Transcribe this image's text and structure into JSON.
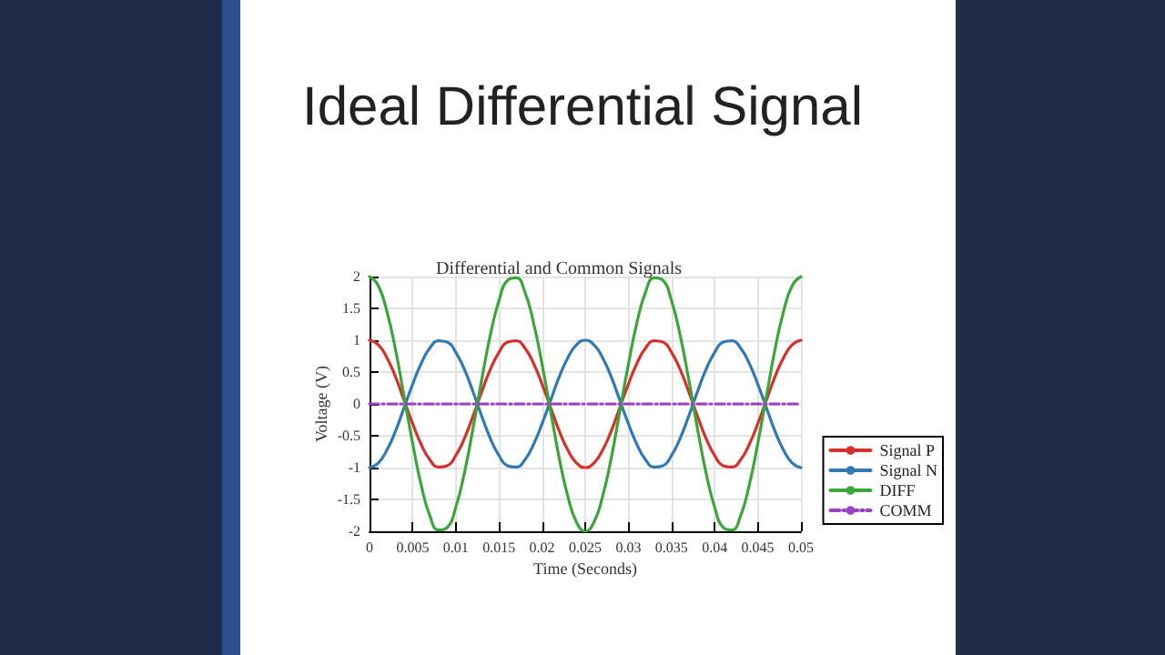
{
  "chart_data": {
    "type": "line",
    "title": "Ideal Differential Signal",
    "subtitle": "Differential and Common Signals",
    "xlabel": "Time (Seconds)",
    "ylabel": "Voltage (V)",
    "x": [
      0,
      0.001,
      0.002,
      0.003,
      0.004,
      0.005,
      0.006,
      0.007,
      0.008,
      0.009,
      0.01,
      0.011,
      0.012,
      0.013,
      0.014,
      0.015,
      0.016,
      0.017,
      0.018,
      0.019,
      0.02,
      0.021,
      0.022,
      0.023,
      0.024,
      0.025,
      0.026,
      0.027,
      0.028,
      0.029,
      0.03,
      0.031,
      0.032,
      0.033,
      0.034,
      0.035,
      0.036,
      0.037,
      0.038,
      0.039,
      0.04,
      0.041,
      0.042,
      0.043,
      0.044,
      0.045,
      0.046,
      0.047,
      0.048,
      0.049,
      0.05
    ],
    "series": [
      {
        "name": "Signal P",
        "color": "#d7302b",
        "values": [
          1,
          0.93,
          0.73,
          0.43,
          0.06,
          -0.31,
          -0.64,
          -0.88,
          -0.99,
          -0.97,
          -0.81,
          -0.54,
          -0.19,
          0.19,
          0.54,
          0.81,
          0.97,
          0.99,
          0.88,
          0.64,
          0.31,
          -0.06,
          -0.43,
          -0.73,
          -0.93,
          -1,
          -0.93,
          -0.73,
          -0.43,
          -0.06,
          0.31,
          0.64,
          0.88,
          0.99,
          0.97,
          0.81,
          0.54,
          0.19,
          -0.19,
          -0.54,
          -0.81,
          -0.97,
          -0.99,
          -0.88,
          -0.64,
          -0.31,
          0.06,
          0.43,
          0.73,
          0.93,
          1
        ]
      },
      {
        "name": "Signal N",
        "color": "#2f7ab5",
        "values": [
          -1,
          -0.93,
          -0.73,
          -0.43,
          -0.06,
          0.31,
          0.64,
          0.88,
          0.99,
          0.97,
          0.81,
          0.54,
          0.19,
          -0.19,
          -0.54,
          -0.81,
          -0.97,
          -0.99,
          -0.88,
          -0.64,
          -0.31,
          0.06,
          0.43,
          0.73,
          0.93,
          1,
          0.93,
          0.73,
          0.43,
          0.06,
          -0.31,
          -0.64,
          -0.88,
          -0.99,
          -0.97,
          -0.81,
          -0.54,
          -0.19,
          0.19,
          0.54,
          0.81,
          0.97,
          0.99,
          0.88,
          0.64,
          0.31,
          -0.06,
          -0.43,
          -0.73,
          -0.93,
          -1
        ]
      },
      {
        "name": "DIFF",
        "color": "#3aa63a",
        "values": [
          2,
          1.86,
          1.46,
          0.86,
          0.12,
          -0.62,
          -1.28,
          -1.76,
          -1.98,
          -1.94,
          -1.62,
          -1.08,
          -0.38,
          0.38,
          1.08,
          1.62,
          1.94,
          1.98,
          1.76,
          1.28,
          0.62,
          -0.12,
          -0.86,
          -1.46,
          -1.86,
          -2,
          -1.86,
          -1.46,
          -0.86,
          -0.12,
          0.62,
          1.28,
          1.76,
          1.98,
          1.94,
          1.62,
          1.08,
          0.38,
          -0.38,
          -1.08,
          -1.62,
          -1.94,
          -1.98,
          -1.76,
          -1.28,
          -0.62,
          0.12,
          0.86,
          1.46,
          1.86,
          2
        ]
      },
      {
        "name": "COMM",
        "color": "#9b40c4",
        "line_style": "dashed",
        "values": [
          0,
          0,
          0,
          0,
          0,
          0,
          0,
          0,
          0,
          0,
          0,
          0,
          0,
          0,
          0,
          0,
          0,
          0,
          0,
          0,
          0,
          0,
          0,
          0,
          0,
          0,
          0,
          0,
          0,
          0,
          0,
          0,
          0,
          0,
          0,
          0,
          0,
          0,
          0,
          0,
          0,
          0,
          0,
          0,
          0,
          0,
          0,
          0,
          0,
          0,
          0
        ]
      }
    ],
    "xlim": [
      0,
      0.05
    ],
    "xticks": [
      0,
      0.005,
      0.01,
      0.015,
      0.02,
      0.025,
      0.03,
      0.035,
      0.04,
      0.045,
      0.05
    ],
    "ylim": [
      -2,
      2
    ],
    "yticks": [
      -2,
      -1.5,
      -1,
      -0.5,
      0,
      0.5,
      1,
      1.5,
      2
    ],
    "grid": true,
    "legend": "right",
    "marker": "none",
    "line_style": "solid"
  }
}
